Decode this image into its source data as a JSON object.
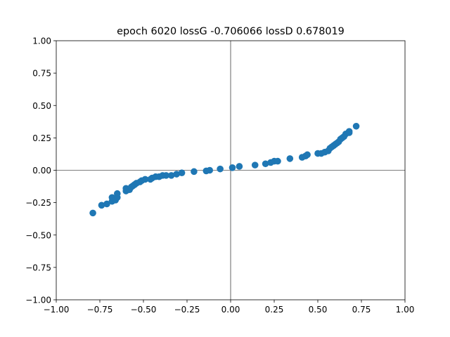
{
  "chart_data": {
    "type": "scatter",
    "title": "epoch 6020 lossG -0.706066 lossD 0.678019",
    "xlabel": "",
    "ylabel": "",
    "xlim": [
      -1.0,
      1.0
    ],
    "ylim": [
      -1.0,
      1.0
    ],
    "xticks": [
      -1.0,
      -0.75,
      -0.5,
      -0.25,
      0.0,
      0.25,
      0.5,
      0.75,
      1.0
    ],
    "yticks": [
      -1.0,
      -0.75,
      -0.5,
      -0.25,
      0.0,
      0.25,
      0.5,
      0.75,
      1.0
    ],
    "xtick_labels": [
      "−1.00",
      "−0.75",
      "−0.50",
      "−0.25",
      "0.00",
      "0.25",
      "0.50",
      "0.75",
      "1.00"
    ],
    "ytick_labels": [
      "−1.00",
      "−0.75",
      "−0.50",
      "−0.25",
      "0.00",
      "0.25",
      "0.50",
      "0.75",
      "1.00"
    ],
    "grid": false,
    "reference_lines": {
      "x": 0.0,
      "y": 0.0
    },
    "marker_color": "#1f77b4",
    "points": [
      [
        -0.79,
        -0.33
      ],
      [
        -0.74,
        -0.27
      ],
      [
        -0.71,
        -0.26
      ],
      [
        -0.68,
        -0.24
      ],
      [
        -0.68,
        -0.21
      ],
      [
        -0.66,
        -0.23
      ],
      [
        -0.65,
        -0.21
      ],
      [
        -0.65,
        -0.18
      ],
      [
        -0.6,
        -0.16
      ],
      [
        -0.6,
        -0.14
      ],
      [
        -0.58,
        -0.15
      ],
      [
        -0.57,
        -0.13
      ],
      [
        -0.56,
        -0.12
      ],
      [
        -0.55,
        -0.11
      ],
      [
        -0.54,
        -0.1
      ],
      [
        -0.52,
        -0.09
      ],
      [
        -0.51,
        -0.08
      ],
      [
        -0.49,
        -0.07
      ],
      [
        -0.46,
        -0.07
      ],
      [
        -0.45,
        -0.06
      ],
      [
        -0.43,
        -0.05
      ],
      [
        -0.41,
        -0.05
      ],
      [
        -0.39,
        -0.04
      ],
      [
        -0.37,
        -0.04
      ],
      [
        -0.34,
        -0.04
      ],
      [
        -0.31,
        -0.03
      ],
      [
        -0.28,
        -0.02
      ],
      [
        -0.21,
        -0.01
      ],
      [
        -0.14,
        -0.005
      ],
      [
        -0.12,
        0.0
      ],
      [
        -0.06,
        0.01
      ],
      [
        0.01,
        0.02
      ],
      [
        0.05,
        0.03
      ],
      [
        0.14,
        0.04
      ],
      [
        0.2,
        0.05
      ],
      [
        0.23,
        0.06
      ],
      [
        0.25,
        0.07
      ],
      [
        0.27,
        0.07
      ],
      [
        0.34,
        0.09
      ],
      [
        0.41,
        0.1
      ],
      [
        0.43,
        0.11
      ],
      [
        0.44,
        0.12
      ],
      [
        0.5,
        0.13
      ],
      [
        0.52,
        0.13
      ],
      [
        0.54,
        0.14
      ],
      [
        0.56,
        0.15
      ],
      [
        0.57,
        0.17
      ],
      [
        0.58,
        0.18
      ],
      [
        0.59,
        0.19
      ],
      [
        0.6,
        0.2
      ],
      [
        0.61,
        0.21
      ],
      [
        0.62,
        0.22
      ],
      [
        0.63,
        0.24
      ],
      [
        0.64,
        0.25
      ],
      [
        0.65,
        0.26
      ],
      [
        0.66,
        0.28
      ],
      [
        0.68,
        0.29
      ],
      [
        0.68,
        0.3
      ],
      [
        0.72,
        0.34
      ]
    ]
  }
}
